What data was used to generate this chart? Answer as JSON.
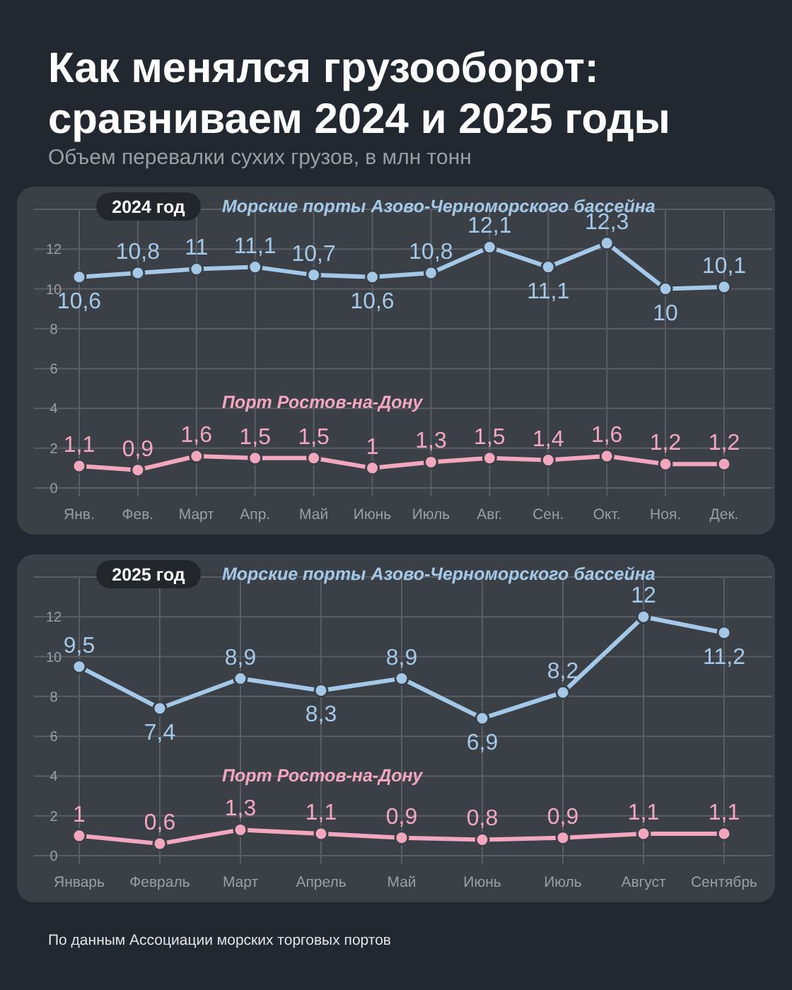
{
  "chart_data": [
    {
      "type": "line",
      "title": "Как менялся грузооборот:\nсравниваем 2024 и 2025 годы",
      "subtitle": "Объем перевалки сухих грузов, в млн тонн",
      "annotations": [
        "2024 год"
      ],
      "categories": [
        "Янв.",
        "Фев.",
        "Март",
        "Апр.",
        "Май",
        "Июнь",
        "Июль",
        "Авг.",
        "Сен.",
        "Окт.",
        "Ноя.",
        "Дек."
      ],
      "series": [
        {
          "name": "Морские порты Азово-Черноморского бассейна",
          "color": "#a4c8e8",
          "values": [
            10.6,
            10.8,
            11,
            11.1,
            10.7,
            10.6,
            10.8,
            12.1,
            11.1,
            12.3,
            10,
            10.1
          ],
          "value_labels": [
            "10,6",
            "10,8",
            "11",
            "11,1",
            "10,7",
            "10,6",
            "10,8",
            "12,1",
            "11,1",
            "12,3",
            "10",
            "10,1"
          ]
        },
        {
          "name": "Порт Ростов-на-Дону",
          "color": "#f2a7be",
          "values": [
            1.1,
            0.9,
            1.6,
            1.5,
            1.5,
            1,
            1.3,
            1.5,
            1.4,
            1.6,
            1.2,
            1.2
          ],
          "value_labels": [
            "1,1",
            "0,9",
            "1,6",
            "1,5",
            "1,5",
            "1",
            "1,3",
            "1,5",
            "1,4",
            "1,6",
            "1,2",
            "1,2"
          ]
        }
      ],
      "ylim": [
        0,
        14
      ],
      "yticks": [
        0,
        2,
        4,
        6,
        8,
        10,
        12,
        {
          "value": 14,
          "label": null
        }
      ],
      "grid": true,
      "marker": "circle"
    },
    {
      "type": "line",
      "annotations": [
        "2025 год",
        "По данным Ассоциации морских торговых портов"
      ],
      "categories": [
        "Январь",
        "Февраль",
        "Март",
        "Апрель",
        "Май",
        "Июнь",
        "Июль",
        "Август",
        "Сентябрь"
      ],
      "series": [
        {
          "name": "Морские порты Азово-Черноморского бассейна",
          "color": "#a4c8e8",
          "values": [
            9.5,
            7.4,
            8.9,
            8.3,
            8.9,
            6.9,
            8.2,
            12,
            11.2
          ],
          "value_labels": [
            "9,5",
            "7,4",
            "8,9",
            "8,3",
            "8,9",
            "6,9",
            "8,2",
            "12",
            "11,2"
          ]
        },
        {
          "name": "Порт Ростов-на-Дону",
          "color": "#f2a7be",
          "values": [
            1,
            0.6,
            1.3,
            1.1,
            0.9,
            0.8,
            0.9,
            1.1,
            1.1
          ],
          "value_labels": [
            "1",
            "0,6",
            "1,3",
            "1,1",
            "0,9",
            "0,8",
            "0,9",
            "1,1",
            "1,1"
          ]
        }
      ],
      "ylim": [
        0,
        14
      ],
      "yticks": [
        0,
        2,
        4,
        6,
        8,
        10,
        12,
        {
          "value": 14,
          "label": null
        }
      ],
      "grid": true,
      "marker": "circle"
    }
  ]
}
